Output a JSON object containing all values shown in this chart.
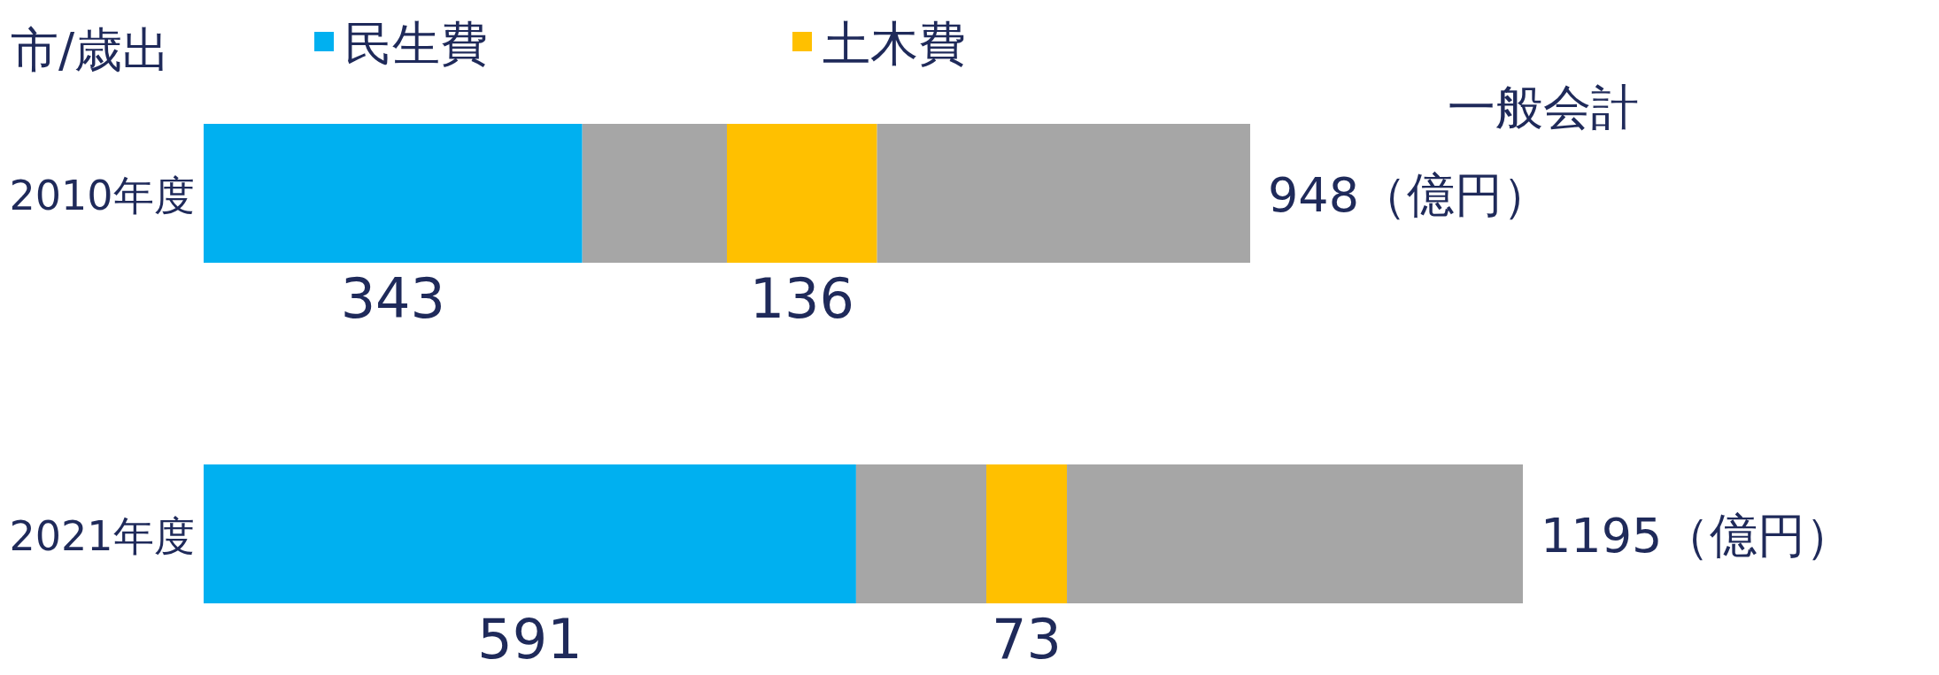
{
  "chart_data": {
    "type": "bar",
    "orientation": "horizontal",
    "stacked": true,
    "title": "市/歳出",
    "categories": [
      "2010年度",
      "2021年度"
    ],
    "series": [
      {
        "name": "民生費",
        "color": "#00b0f0",
        "values": [
          343,
          591
        ],
        "value_labels": [
          "343",
          "591"
        ]
      },
      {
        "color": "#a6a6a6",
        "values": [
          131,
          118
        ]
      },
      {
        "name": "土木費",
        "color": "#ffc000",
        "values": [
          136,
          73
        ],
        "value_labels": [
          "136",
          "73"
        ]
      },
      {
        "color": "#a6a6a6",
        "values": [
          338,
          413
        ]
      }
    ],
    "totals": [
      "948（億円）",
      "1195（億円）"
    ],
    "annotations": [
      "一般会計"
    ],
    "legend": "top"
  }
}
